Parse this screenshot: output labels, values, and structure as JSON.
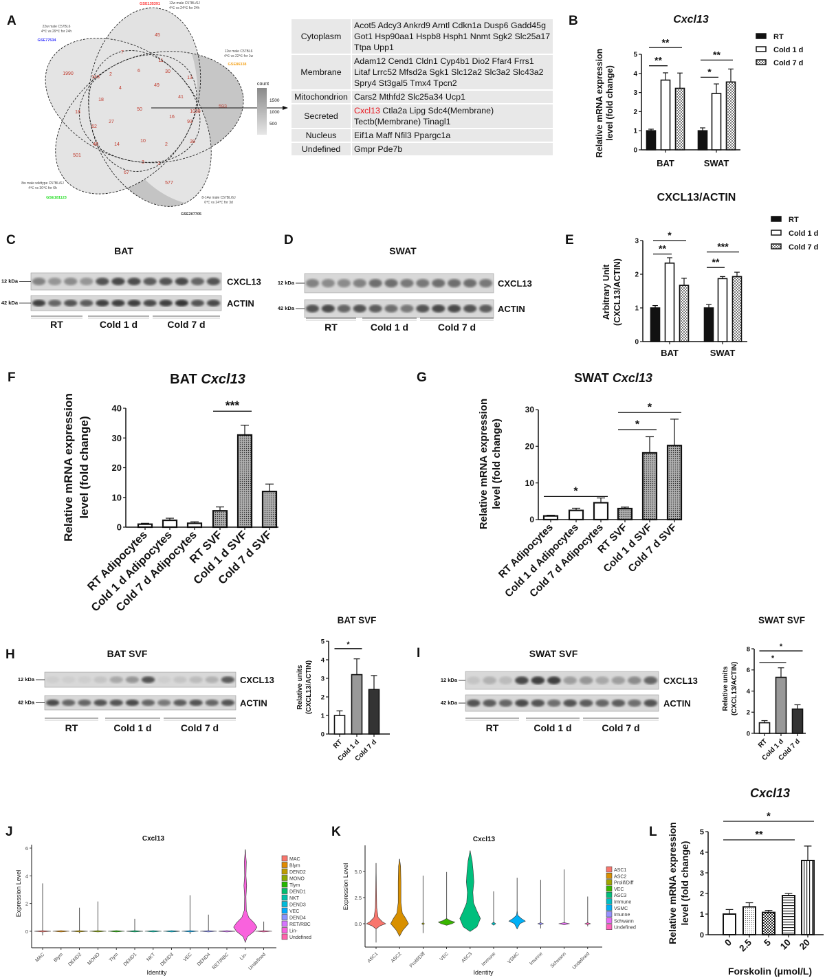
{
  "panel_letters": [
    "A",
    "B",
    "C",
    "D",
    "E",
    "F",
    "G",
    "H",
    "I",
    "J",
    "K",
    "L"
  ],
  "venn": {
    "sets": [
      {
        "id": "GSE135391",
        "desc": [
          "12w male C57BL/6J",
          "4℃ vs 24℃ for 24h"
        ],
        "color": "#ff3b3b"
      },
      {
        "id": "GSE86338",
        "desc": [
          "12w male C57BL6",
          "4℃ vs 22℃ for 1w"
        ],
        "color": "#f5a623"
      },
      {
        "id": "GSE207705",
        "desc": [
          "8-14w male C57BL/6J",
          "6℃ vs 24℃ for 3d"
        ],
        "color": "#333333"
      },
      {
        "id": "GSE181123",
        "desc": [
          "8w male wildtype C57BL/6J",
          "4℃ vs 30℃ for 6h"
        ],
        "color": "#22dd22"
      },
      {
        "id": "GSE77534",
        "desc": [
          "22w male C57BL6",
          "4℃ vs 29℃ for 24h"
        ],
        "color": "#3333ff"
      }
    ],
    "counts": [
      "45",
      "7",
      "11",
      "30",
      "13",
      "1990",
      "143",
      "2",
      "6",
      "4",
      "49",
      "41",
      "593",
      "18",
      "18",
      "50",
      "1038",
      "16",
      "93",
      "27",
      "62",
      "46",
      "14",
      "10",
      "2",
      "38",
      "501",
      "3",
      "3",
      "67",
      "577"
    ],
    "legend": {
      "title": "count",
      "ticks": [
        "1500",
        "1000",
        "500"
      ]
    }
  },
  "table": {
    "rows": [
      {
        "category": "Cytoplasm",
        "genes": "Acot5 Adcy3 Ankrd9 Arntl Cdkn1a Dusp6 Gadd45g Got1 Hsp90aa1 Hspb8 Hsph1 Nnmt Sgk2 Slc25a17 Ttpa Upp1"
      },
      {
        "category": "Membrane",
        "genes": "Adam12 Cend1 Cldn1 Cyp4b1 Dio2 Ffar4 Frrs1 Litaf Lrrc52 Mfsd2a Sgk1 Slc12a2 Slc3a2 Slc43a2 Spry4 St3gal5 Tmx4 Tpcn2"
      },
      {
        "category": "Mitochondrion",
        "genes": "Cars2 Mthfd2 Slc25a34 Ucp1"
      },
      {
        "category": "Secreted",
        "highlight": "Cxcl13",
        "genes": "Ctla2a Lipg Sdc4(Membrane) Tectb(Membrane) Tinagl1"
      },
      {
        "category": "Nucleus",
        "genes": "Eif1a Maff Nfil3 Ppargc1a"
      },
      {
        "category": "Undefined",
        "genes": "Gmpr Pde7b"
      }
    ]
  },
  "blots": {
    "C": {
      "title": "BAT",
      "bands": [
        "CXCL13",
        "ACTIN"
      ],
      "markers": [
        "12 kDa",
        "42 kDa"
      ],
      "groups": [
        "RT",
        "Cold 1 d",
        "Cold 7 d"
      ]
    },
    "D": {
      "title": "SWAT",
      "bands": [
        "CXCL13",
        "ACTIN"
      ],
      "markers": [
        "12 kDa",
        "42 kDa"
      ],
      "groups": [
        "RT",
        "Cold 1 d",
        "Cold 7 d"
      ]
    },
    "H": {
      "title": "BAT SVF",
      "bands": [
        "CXCL13",
        "ACTIN"
      ],
      "markers": [
        "12 kDa",
        "42 kDa"
      ],
      "groups": [
        "RT",
        "Cold 1 d",
        "Cold 7 d"
      ]
    },
    "I": {
      "title": "SWAT SVF",
      "bands": [
        "CXCL13",
        "ACTIN"
      ],
      "markers": [
        "12 kDa",
        "42 kDa"
      ],
      "groups": [
        "RT",
        "Cold 1 d",
        "Cold 7 d"
      ]
    }
  },
  "chart_data": [
    {
      "id": "B",
      "type": "bar",
      "title": "Cxcl13",
      "title_italic": true,
      "ylabel": [
        "Relative mRNA expression",
        "level (fold change)"
      ],
      "ylim": [
        0,
        5
      ],
      "yticks": [
        "0",
        "1",
        "2",
        "3",
        "4",
        "5"
      ],
      "categories": [
        "BAT",
        "SWAT"
      ],
      "series": [
        {
          "name": "RT",
          "style": "black",
          "values": [
            1.0,
            1.0
          ],
          "errors": [
            0.08,
            0.15
          ]
        },
        {
          "name": "Cold 1 d",
          "style": "white",
          "values": [
            3.65,
            2.95
          ],
          "errors": [
            0.38,
            0.5
          ]
        },
        {
          "name": "Cold 7 d",
          "style": "checker",
          "values": [
            3.22,
            3.55
          ],
          "errors": [
            0.8,
            0.68
          ]
        }
      ],
      "significance": [
        {
          "group": 0,
          "from": 0,
          "to": 1,
          "label": "**"
        },
        {
          "group": 0,
          "from": 0,
          "to": 2,
          "label": "**"
        },
        {
          "group": 1,
          "from": 0,
          "to": 1,
          "label": "*"
        },
        {
          "group": 1,
          "from": 0,
          "to": 2,
          "label": "**"
        }
      ],
      "legend": "right"
    },
    {
      "id": "E",
      "type": "bar",
      "title": "CXCL13/ACTIN",
      "ylabel": [
        "Arbitrary Unit",
        "(CXCL13/ACTIN)"
      ],
      "ylim": [
        0,
        3
      ],
      "yticks": [
        "0",
        "1",
        "2",
        "3"
      ],
      "categories": [
        "BAT",
        "SWAT"
      ],
      "series": [
        {
          "name": "RT",
          "style": "black",
          "values": [
            1.0,
            1.0
          ],
          "errors": [
            0.07,
            0.1
          ]
        },
        {
          "name": "Cold 1 d",
          "style": "white",
          "values": [
            2.33,
            1.87
          ],
          "errors": [
            0.16,
            0.06
          ]
        },
        {
          "name": "Cold 7 d",
          "style": "checker",
          "values": [
            1.67,
            1.93
          ],
          "errors": [
            0.21,
            0.13
          ]
        }
      ],
      "significance": [
        {
          "group": 0,
          "from": 0,
          "to": 1,
          "label": "**"
        },
        {
          "group": 0,
          "from": 0,
          "to": 2,
          "label": "*"
        },
        {
          "group": 1,
          "from": 0,
          "to": 1,
          "label": "**"
        },
        {
          "group": 1,
          "from": 0,
          "to": 2,
          "label": "***"
        }
      ],
      "legend": "right"
    },
    {
      "id": "F",
      "type": "bar",
      "title": "BAT",
      "title_italic_part": "Cxcl13",
      "ylabel": [
        "Relative mRNA expression",
        "level (fold change)"
      ],
      "ylim": [
        0,
        40
      ],
      "yticks": [
        "0",
        "10",
        "20",
        "30",
        "40"
      ],
      "categories": [
        "RT Adipocytes",
        "Cold 1 d Adipocytes",
        "Cold 7 d Adipocytes",
        "RT SVF",
        "Cold 1 d SVF",
        "Cold 7 d SVF"
      ],
      "values": [
        1.0,
        2.3,
        1.3,
        5.5,
        31.0,
        12.0
      ],
      "errors": [
        0.3,
        0.7,
        0.5,
        1.3,
        3.3,
        2.5
      ],
      "styles": [
        "white",
        "white",
        "white",
        "stipple",
        "stipple",
        "stipple"
      ],
      "significance": [
        {
          "from": 3,
          "to": 4,
          "label": "***"
        }
      ]
    },
    {
      "id": "G",
      "type": "bar",
      "title": "SWAT",
      "title_italic_part": "Cxcl13",
      "ylabel": [
        "Relative mRNA expression",
        "level (fold change)"
      ],
      "ylim": [
        0,
        30
      ],
      "yticks": [
        "0",
        "10",
        "20",
        "30"
      ],
      "categories": [
        "RT Adipocytes",
        "Cold 1 d Adipocytes",
        "Cold 7 d Adipocytes",
        "RT SVF",
        "Cold 1 d SVF",
        "Cold 7 d SVF"
      ],
      "values": [
        1.0,
        2.5,
        4.6,
        3.0,
        18.2,
        20.2
      ],
      "errors": [
        0.2,
        0.6,
        1.3,
        0.4,
        4.4,
        7.2
      ],
      "styles": [
        "white",
        "white",
        "white",
        "stipple",
        "stipple",
        "stipple"
      ],
      "significance": [
        {
          "from": 0,
          "to": 2,
          "label": "*"
        },
        {
          "from": 3,
          "to": 4,
          "label": "*"
        },
        {
          "from": 3,
          "to": 5,
          "label": "*"
        }
      ]
    },
    {
      "id": "H",
      "type": "bar",
      "title": "BAT SVF",
      "ylabel": [
        "Relative units",
        "(CXCL13/ACTIN)"
      ],
      "ylim": [
        0,
        5
      ],
      "yticks": [
        "0",
        "1",
        "2",
        "3",
        "4",
        "5"
      ],
      "categories": [
        "RT",
        "Cold 1 d",
        "Cold 7 d"
      ],
      "values": [
        1.0,
        3.2,
        2.4
      ],
      "errors": [
        0.25,
        0.85,
        0.75
      ],
      "styles": [
        "white",
        "gray",
        "dark"
      ],
      "significance": [
        {
          "from": 0,
          "to": 1,
          "label": "*"
        }
      ]
    },
    {
      "id": "I",
      "type": "bar",
      "title": "SWAT SVF",
      "ylabel": [
        "Relative units",
        "(CXCL13/ACTIN)"
      ],
      "ylim": [
        0,
        8
      ],
      "yticks": [
        "0",
        "2",
        "4",
        "6",
        "8"
      ],
      "categories": [
        "RT",
        "Cold 1 d",
        "Cold 7 d"
      ],
      "values": [
        1.0,
        5.3,
        2.3
      ],
      "errors": [
        0.2,
        0.9,
        0.4
      ],
      "styles": [
        "white",
        "gray",
        "dark"
      ],
      "significance": [
        {
          "from": 0,
          "to": 1,
          "label": "*"
        },
        {
          "from": 0,
          "to": 2,
          "label": "*"
        }
      ]
    },
    {
      "id": "L",
      "type": "bar",
      "title": "Cxcl13",
      "title_italic": true,
      "ylabel": [
        "Relative mRNA expression",
        "level (fold change)"
      ],
      "xlabel": "Forskolin (μmol/L)",
      "ylim": [
        0,
        5
      ],
      "yticks": [
        "0",
        "1",
        "2",
        "3",
        "4",
        "5"
      ],
      "categories": [
        "0",
        "2.5",
        "5",
        "10",
        "20"
      ],
      "values": [
        1.0,
        1.35,
        1.08,
        1.9,
        3.6
      ],
      "errors": [
        0.22,
        0.2,
        0.1,
        0.1,
        0.7
      ],
      "styles": [
        "white",
        "lightdots",
        "checkerdark",
        "hlines",
        "vlines"
      ],
      "significance": [
        {
          "from": 0,
          "to": 3,
          "label": "**"
        },
        {
          "from": 0,
          "to": 4,
          "label": "*"
        }
      ]
    },
    {
      "id": "J",
      "type": "violin",
      "title": "Cxcl13",
      "xlabel": "Identity",
      "ylabel": "Expression Level",
      "ylim": [
        -1,
        6
      ],
      "yticks": [
        "0",
        "2",
        "4",
        "6"
      ],
      "categories": [
        "MAC",
        "Blym",
        "DEND2",
        "MONO",
        "Tlym",
        "DEND1",
        "NKT",
        "DEND3",
        "VEC",
        "DEND4",
        "RET/RBC",
        "Lin-",
        "Undefined"
      ],
      "max": [
        3.45,
        0,
        1.7,
        2.15,
        0,
        0.9,
        0.05,
        0.05,
        2.6,
        1.2,
        0,
        5.9,
        0.7
      ],
      "min": [
        -0.3,
        0,
        -0.15,
        0,
        0,
        0,
        0,
        0,
        -0.2,
        0,
        0,
        -0.8,
        0
      ],
      "colors": [
        "#F8766D",
        "#E18A00",
        "#BE9C00",
        "#8CAB00",
        "#24B700",
        "#00BE70",
        "#00C1AB",
        "#00BBDA",
        "#00ACFC",
        "#8B93FF",
        "#D575FE",
        "#F962DD",
        "#FF65AC"
      ],
      "legend": "right"
    },
    {
      "id": "K",
      "type": "violin",
      "title": "Cxcl13",
      "xlabel": "Identity",
      "ylabel": "Expression Level",
      "ylim": [
        -2,
        7
      ],
      "yticks": [
        "0.0",
        "2.5",
        "5.0"
      ],
      "categories": [
        "ASC1",
        "ASC2",
        "Prolif/Diff",
        "VEC",
        "ASC3",
        "Immune",
        "VSMC",
        "Imunne",
        "Schwann",
        "Undefined"
      ],
      "max": [
        5.8,
        6.2,
        4.6,
        4.95,
        7.0,
        3.1,
        4.4,
        4.2,
        5.2,
        2.6
      ],
      "min": [
        -1.8,
        -1.2,
        -0.9,
        -0.15,
        -0.75,
        -0.15,
        -0.5,
        -0.45,
        -0.1,
        -0.25
      ],
      "colors": [
        "#F8766D",
        "#D89000",
        "#A3A500",
        "#39B600",
        "#00BF7D",
        "#00BFC4",
        "#00B0F6",
        "#9590FF",
        "#E76BF3",
        "#FF62BC"
      ],
      "legend": "right"
    }
  ]
}
